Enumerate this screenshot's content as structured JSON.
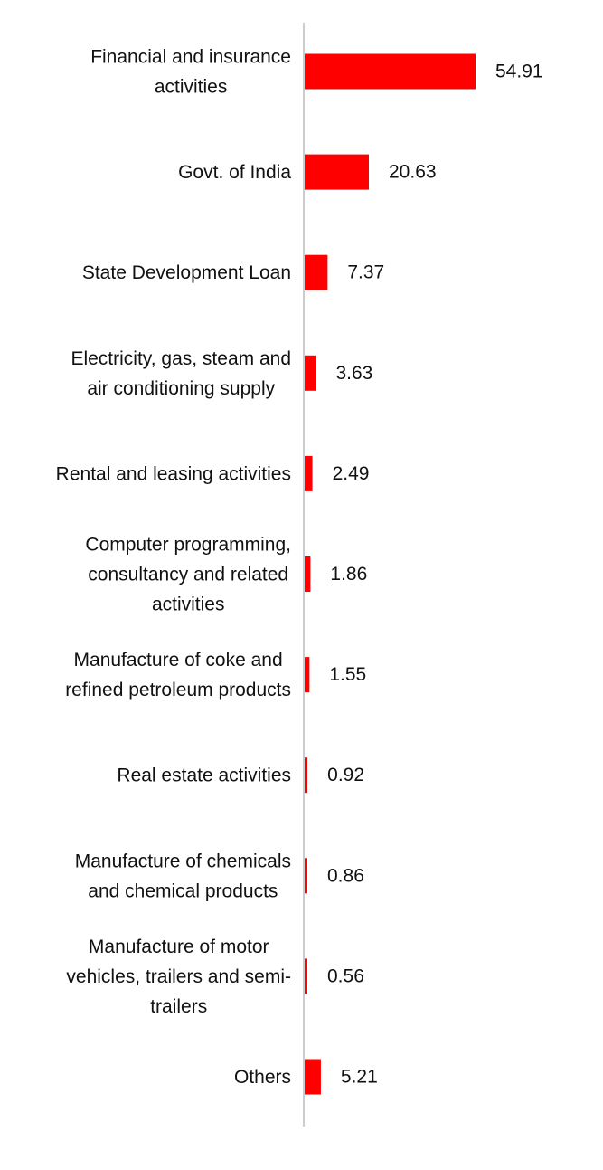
{
  "colors": {
    "bar": "#ff0000",
    "axis": "#cccccc",
    "text": "#111111",
    "background": "#ffffff"
  },
  "chart_data": {
    "type": "bar",
    "orientation": "horizontal",
    "categories": [
      "Financial and insurance activities",
      "Govt. of India",
      "State Development Loan",
      "Electricity, gas, steam and air conditioning supply",
      "Rental and leasing activities",
      "Computer programming, consultancy and related activities",
      "Manufacture of coke and refined petroleum products",
      "Real estate activities",
      "Manufacture of chemicals and chemical products",
      "Manufacture of motor vehicles, trailers and semi-trailers",
      "Others"
    ],
    "category_label_lines": [
      [
        "Financial and insurance",
        "activities"
      ],
      [
        "Govt. of India"
      ],
      [
        "State Development Loan"
      ],
      [
        "Electricity, gas, steam and",
        "air conditioning supply"
      ],
      [
        "Rental and leasing activities"
      ],
      [
        "Computer programming,",
        "consultancy and related",
        "activities"
      ],
      [
        "Manufacture of coke and",
        "refined petroleum products"
      ],
      [
        "Real estate activities"
      ],
      [
        "Manufacture of chemicals",
        "and chemical products"
      ],
      [
        "Manufacture of motor",
        "vehicles, trailers and semi-",
        "trailers"
      ],
      [
        "Others"
      ]
    ],
    "values": [
      54.91,
      20.63,
      7.37,
      3.63,
      2.49,
      1.86,
      1.55,
      0.92,
      0.86,
      0.56,
      5.21
    ],
    "value_labels": [
      "54.91",
      "20.63",
      "7.37",
      "3.63",
      "2.49",
      "1.86",
      "1.55",
      "0.92",
      "0.86",
      "0.56",
      "5.21"
    ],
    "title": "",
    "xlabel": "",
    "ylabel": "",
    "xlim": [
      0,
      60
    ],
    "grid": false,
    "legend": "none",
    "data_labels": "outside-end"
  }
}
